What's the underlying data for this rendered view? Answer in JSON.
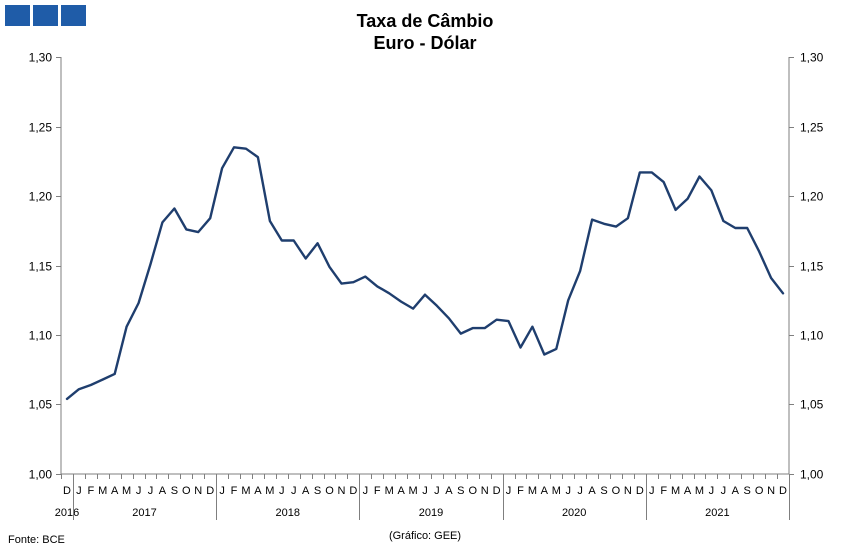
{
  "logo_colors": [
    "#1f5ca8",
    "#1f5ca8",
    "#1f5ca8"
  ],
  "title": [
    "Taxa de Câmbio",
    "Euro - Dólar"
  ],
  "footer": {
    "source": "Fonte: BCE",
    "credit": "(Gráfico: GEE)"
  },
  "colors": {
    "line": "#1f3e6e",
    "axis": "#7f7f7f"
  },
  "chart_data": {
    "type": "line",
    "ylim": [
      1.0,
      1.3
    ],
    "yticks": [
      "1,00",
      "1,05",
      "1,10",
      "1,15",
      "1,20",
      "1,25",
      "1,30"
    ],
    "ytick_values": [
      1.0,
      1.05,
      1.1,
      1.15,
      1.2,
      1.25,
      1.3
    ],
    "grid": false,
    "right_axis_mirrored": true,
    "month_labels": [
      "D",
      "J",
      "F",
      "M",
      "A",
      "M",
      "J",
      "J",
      "A",
      "S",
      "O",
      "N",
      "D",
      "J",
      "F",
      "M",
      "A",
      "M",
      "J",
      "J",
      "A",
      "S",
      "O",
      "N",
      "D",
      "J",
      "F",
      "M",
      "A",
      "M",
      "J",
      "J",
      "A",
      "S",
      "O",
      "N",
      "D",
      "J",
      "F",
      "M",
      "A",
      "M",
      "J",
      "J",
      "A",
      "S",
      "O",
      "N",
      "D",
      "J",
      "F",
      "M",
      "A",
      "M",
      "J",
      "J",
      "A",
      "S",
      "O",
      "N",
      "D"
    ],
    "years": [
      {
        "label": "2016",
        "start": 0,
        "end": 0
      },
      {
        "label": "2017",
        "start": 1,
        "end": 12
      },
      {
        "label": "2018",
        "start": 13,
        "end": 24
      },
      {
        "label": "2019",
        "start": 25,
        "end": 36
      },
      {
        "label": "2020",
        "start": 37,
        "end": 48
      },
      {
        "label": "2021",
        "start": 49,
        "end": 60
      }
    ],
    "series": [
      {
        "values": [
          1.054,
          1.061,
          1.064,
          1.068,
          1.072,
          1.106,
          1.123,
          1.151,
          1.181,
          1.191,
          1.176,
          1.174,
          1.184,
          1.22,
          1.235,
          1.234,
          1.228,
          1.182,
          1.168,
          1.168,
          1.155,
          1.166,
          1.149,
          1.137,
          1.138,
          1.142,
          1.135,
          1.13,
          1.124,
          1.119,
          1.129,
          1.121,
          1.112,
          1.101,
          1.105,
          1.105,
          1.111,
          1.11,
          1.091,
          1.106,
          1.086,
          1.09,
          1.125,
          1.146,
          1.183,
          1.18,
          1.178,
          1.184,
          1.217,
          1.217,
          1.21,
          1.19,
          1.198,
          1.214,
          1.204,
          1.182,
          1.177,
          1.177,
          1.16,
          1.141,
          1.13
        ]
      }
    ]
  }
}
